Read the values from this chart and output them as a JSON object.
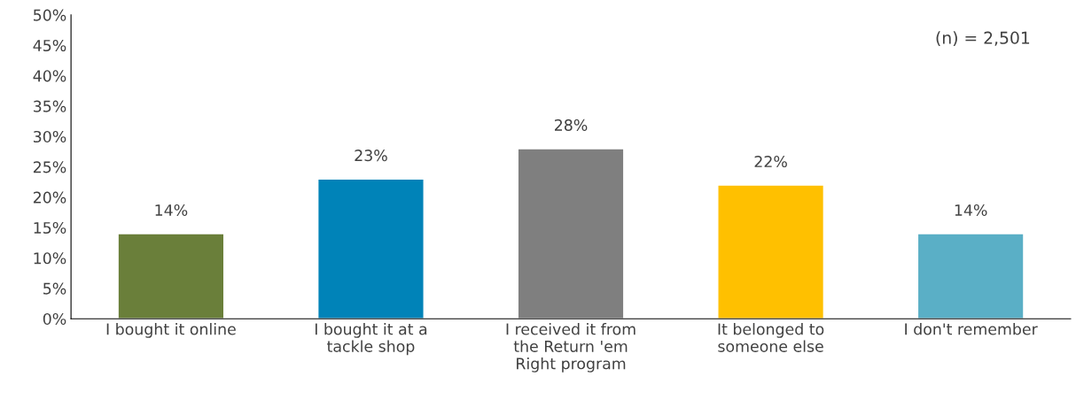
{
  "chart_data": {
    "type": "bar",
    "categories": [
      "I bought it online",
      "I bought it at a tackle shop",
      "I received it from the Return 'em Right program",
      "It belonged to someone else",
      "I don't remember"
    ],
    "values": [
      14,
      23,
      28,
      22,
      14
    ],
    "colors": [
      "#6a7f3a",
      "#0083b8",
      "#7f7f7f",
      "#ffc000",
      "#5aafc6"
    ],
    "value_labels": [
      "14%",
      "23%",
      "28%",
      "22%",
      "14%"
    ],
    "ylim": [
      0,
      50
    ],
    "yticks": [
      {
        "value": 0,
        "label": "0%"
      },
      {
        "value": 5,
        "label": "5%"
      },
      {
        "value": 10,
        "label": "10%"
      },
      {
        "value": 15,
        "label": "15%"
      },
      {
        "value": 20,
        "label": "20%"
      },
      {
        "value": 25,
        "label": "25%"
      },
      {
        "value": 30,
        "label": "30%"
      },
      {
        "value": 35,
        "label": "35%"
      },
      {
        "value": 40,
        "label": "40%"
      },
      {
        "value": 45,
        "label": "45%"
      },
      {
        "value": 50,
        "label": "50%"
      }
    ],
    "annotations": [
      "(n) = 2,501"
    ],
    "grid": false,
    "legend": false
  }
}
